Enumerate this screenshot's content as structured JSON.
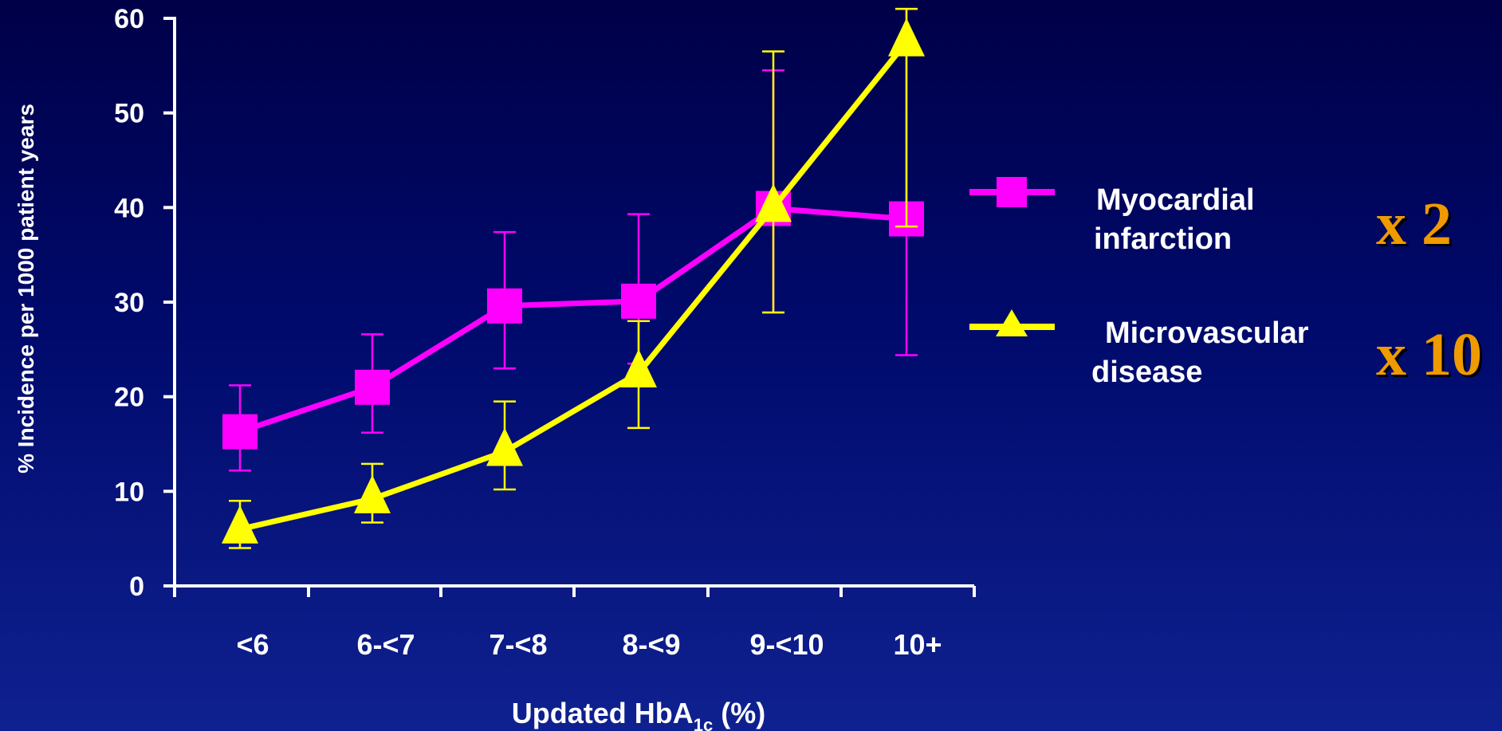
{
  "chart_data": {
    "type": "line",
    "title": "",
    "xlabel_main": "Updated HbA",
    "xlabel_sub": "1c",
    "xlabel_tail": " (%)",
    "ylabel": "% Incidence per 1000 patient years",
    "categories": [
      "<6",
      "6-<7",
      "7-<8",
      "8-<9",
      "9-<10",
      "10+"
    ],
    "ylim": [
      0,
      60
    ],
    "yticks": [
      "0",
      "10",
      "20",
      "30",
      "40",
      "50",
      "60"
    ],
    "grid": false,
    "legend_position": "right",
    "series": [
      {
        "name_line1": "Myocardial",
        "name_line2": "infarction",
        "marker": "square",
        "color": "#ff00ff",
        "values": [
          16.3,
          21,
          29.6,
          30.1,
          39.9,
          38.8
        ],
        "err_low": [
          12.2,
          16.2,
          23,
          23.5,
          28.9,
          24.4
        ],
        "err_high": [
          21.2,
          26.6,
          37.4,
          39.3,
          54.5,
          61
        ],
        "multiplier": "x 2"
      },
      {
        "name_line1": "Microvascular",
        "name_line2": "disease",
        "marker": "triangle",
        "color": "#ffff00",
        "values": [
          6,
          9.2,
          14.2,
          22.5,
          40,
          57.5
        ],
        "err_low": [
          4,
          6.7,
          10.2,
          16.7,
          28.9,
          38
        ],
        "err_high": [
          9,
          12.9,
          19.5,
          28,
          56.5,
          61
        ],
        "multiplier": "x 10"
      }
    ]
  },
  "colors": {
    "axis": "#ffffff",
    "multiplier_fill": "#ee9a00",
    "multiplier_shadow": "#000000"
  }
}
